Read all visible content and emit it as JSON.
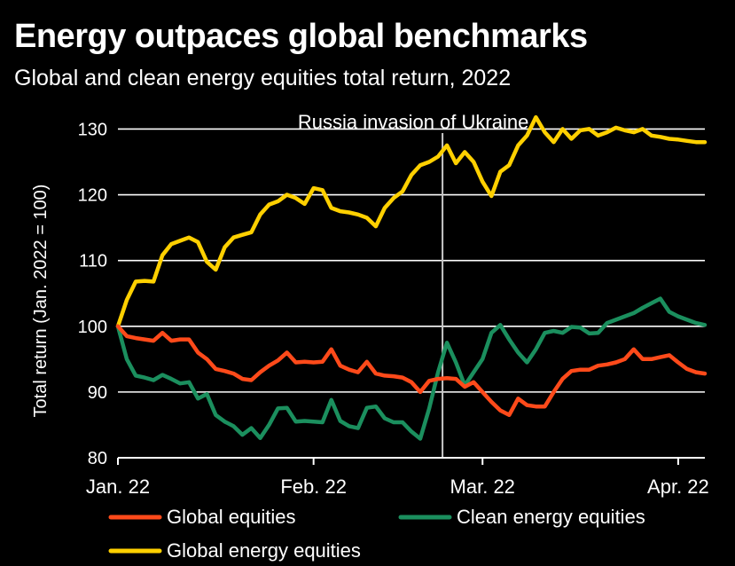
{
  "chart_data": {
    "type": "line",
    "title": "Energy outpaces global benchmarks",
    "subtitle": "Global and clean energy equities total return, 2022",
    "ylabel": "Total return (Jan. 2022 = 100)",
    "xlabel": "",
    "ylim": [
      80,
      131
    ],
    "yticks": [
      80,
      90,
      100,
      110,
      120,
      130
    ],
    "ytick_labels": [
      "80",
      "90",
      "100",
      "110",
      "120",
      "130"
    ],
    "xlim": [
      0,
      66
    ],
    "xticks": [
      0,
      22,
      41,
      63
    ],
    "xtick_labels": [
      "Jan. 22",
      "Feb. 22",
      "Mar. 22",
      "Apr. 22"
    ],
    "grid": "horizontal",
    "legend_position": "bottom",
    "annotation": {
      "label": "Russia invasion of Ukraine",
      "x": 36.5
    },
    "x": [
      0,
      1,
      2,
      3,
      4,
      5,
      6,
      7,
      8,
      9,
      10,
      11,
      12,
      13,
      14,
      15,
      16,
      17,
      18,
      19,
      20,
      21,
      22,
      23,
      24,
      25,
      26,
      27,
      28,
      29,
      30,
      31,
      32,
      33,
      34,
      35,
      36,
      37,
      38,
      39,
      40,
      41,
      42,
      43,
      44,
      45,
      46,
      47,
      48,
      49,
      50,
      51,
      52,
      53,
      54,
      55,
      56,
      57,
      58,
      59,
      60,
      61,
      62,
      63,
      64,
      65,
      66
    ],
    "series": [
      {
        "name": "Global equities",
        "color": "#ff4a1a",
        "values": [
          100,
          98.5,
          98.2,
          98.0,
          97.8,
          99.0,
          97.8,
          98.0,
          98.0,
          96.0,
          95.0,
          93.5,
          93.2,
          92.8,
          92.0,
          91.8,
          93.0,
          94.0,
          94.8,
          96.0,
          94.5,
          94.6,
          94.5,
          94.6,
          96.5,
          94.0,
          93.4,
          93.0,
          94.6,
          92.8,
          92.5,
          92.4,
          92.2,
          91.5,
          90.0,
          91.7,
          92.0,
          92.1,
          92.0,
          90.8,
          91.5,
          90.0,
          88.5,
          87.2,
          86.5,
          89.0,
          88.0,
          87.8,
          87.8,
          90.0,
          92.0,
          93.2,
          93.4,
          93.4,
          94.0,
          94.2,
          94.5,
          95.0,
          96.5,
          95.0,
          95.0,
          95.3,
          95.6,
          94.5,
          93.5,
          93.0,
          92.8
        ]
      },
      {
        "name": "Clean energy equities",
        "color": "#1b8f5e",
        "values": [
          100,
          95.0,
          92.5,
          92.2,
          91.8,
          92.6,
          92.0,
          91.3,
          91.5,
          89.0,
          89.7,
          86.5,
          85.5,
          84.8,
          83.5,
          84.5,
          83.0,
          85.0,
          87.5,
          87.6,
          85.5,
          85.6,
          85.5,
          85.4,
          88.8,
          85.6,
          84.8,
          84.5,
          87.6,
          87.8,
          86.0,
          85.4,
          85.4,
          84.0,
          82.9,
          87.5,
          93.0,
          97.5,
          94.5,
          91.0,
          93.0,
          95.0,
          99.0,
          100.2,
          98.0,
          96.0,
          94.5,
          96.5,
          99.0,
          99.3,
          99.0,
          99.9,
          99.8,
          98.9,
          99.0,
          100.5,
          101.0,
          101.5,
          102.0,
          102.8,
          103.5,
          104.2,
          102.2,
          101.5,
          101.0,
          100.5,
          100.2
        ]
      },
      {
        "name": "Global energy equities",
        "color": "#ffd000",
        "values": [
          100,
          104.0,
          106.8,
          106.9,
          106.8,
          110.8,
          112.5,
          113.0,
          113.5,
          112.8,
          109.8,
          108.6,
          112.0,
          113.5,
          113.9,
          114.3,
          117.0,
          118.5,
          119.0,
          120.0,
          119.5,
          118.6,
          121.0,
          120.7,
          118.0,
          117.5,
          117.3,
          117.0,
          116.5,
          115.2,
          118.0,
          119.5,
          120.5,
          123.0,
          124.5,
          125.0,
          125.8,
          127.5,
          124.8,
          126.5,
          125.0,
          122.0,
          119.8,
          123.5,
          124.5,
          127.5,
          129.0,
          131.8,
          129.5,
          128.0,
          130.0,
          128.5,
          129.8,
          130.0,
          129.0,
          129.5,
          130.2,
          129.8,
          129.5,
          130.0,
          129.0,
          128.8,
          128.5,
          128.4,
          128.2,
          128.0,
          128.0
        ]
      }
    ],
    "legend": [
      {
        "name": "Global equities",
        "color": "#ff4a1a"
      },
      {
        "name": "Clean energy equities",
        "color": "#1b8f5e"
      },
      {
        "name": "Global energy equities",
        "color": "#ffd000"
      }
    ]
  }
}
